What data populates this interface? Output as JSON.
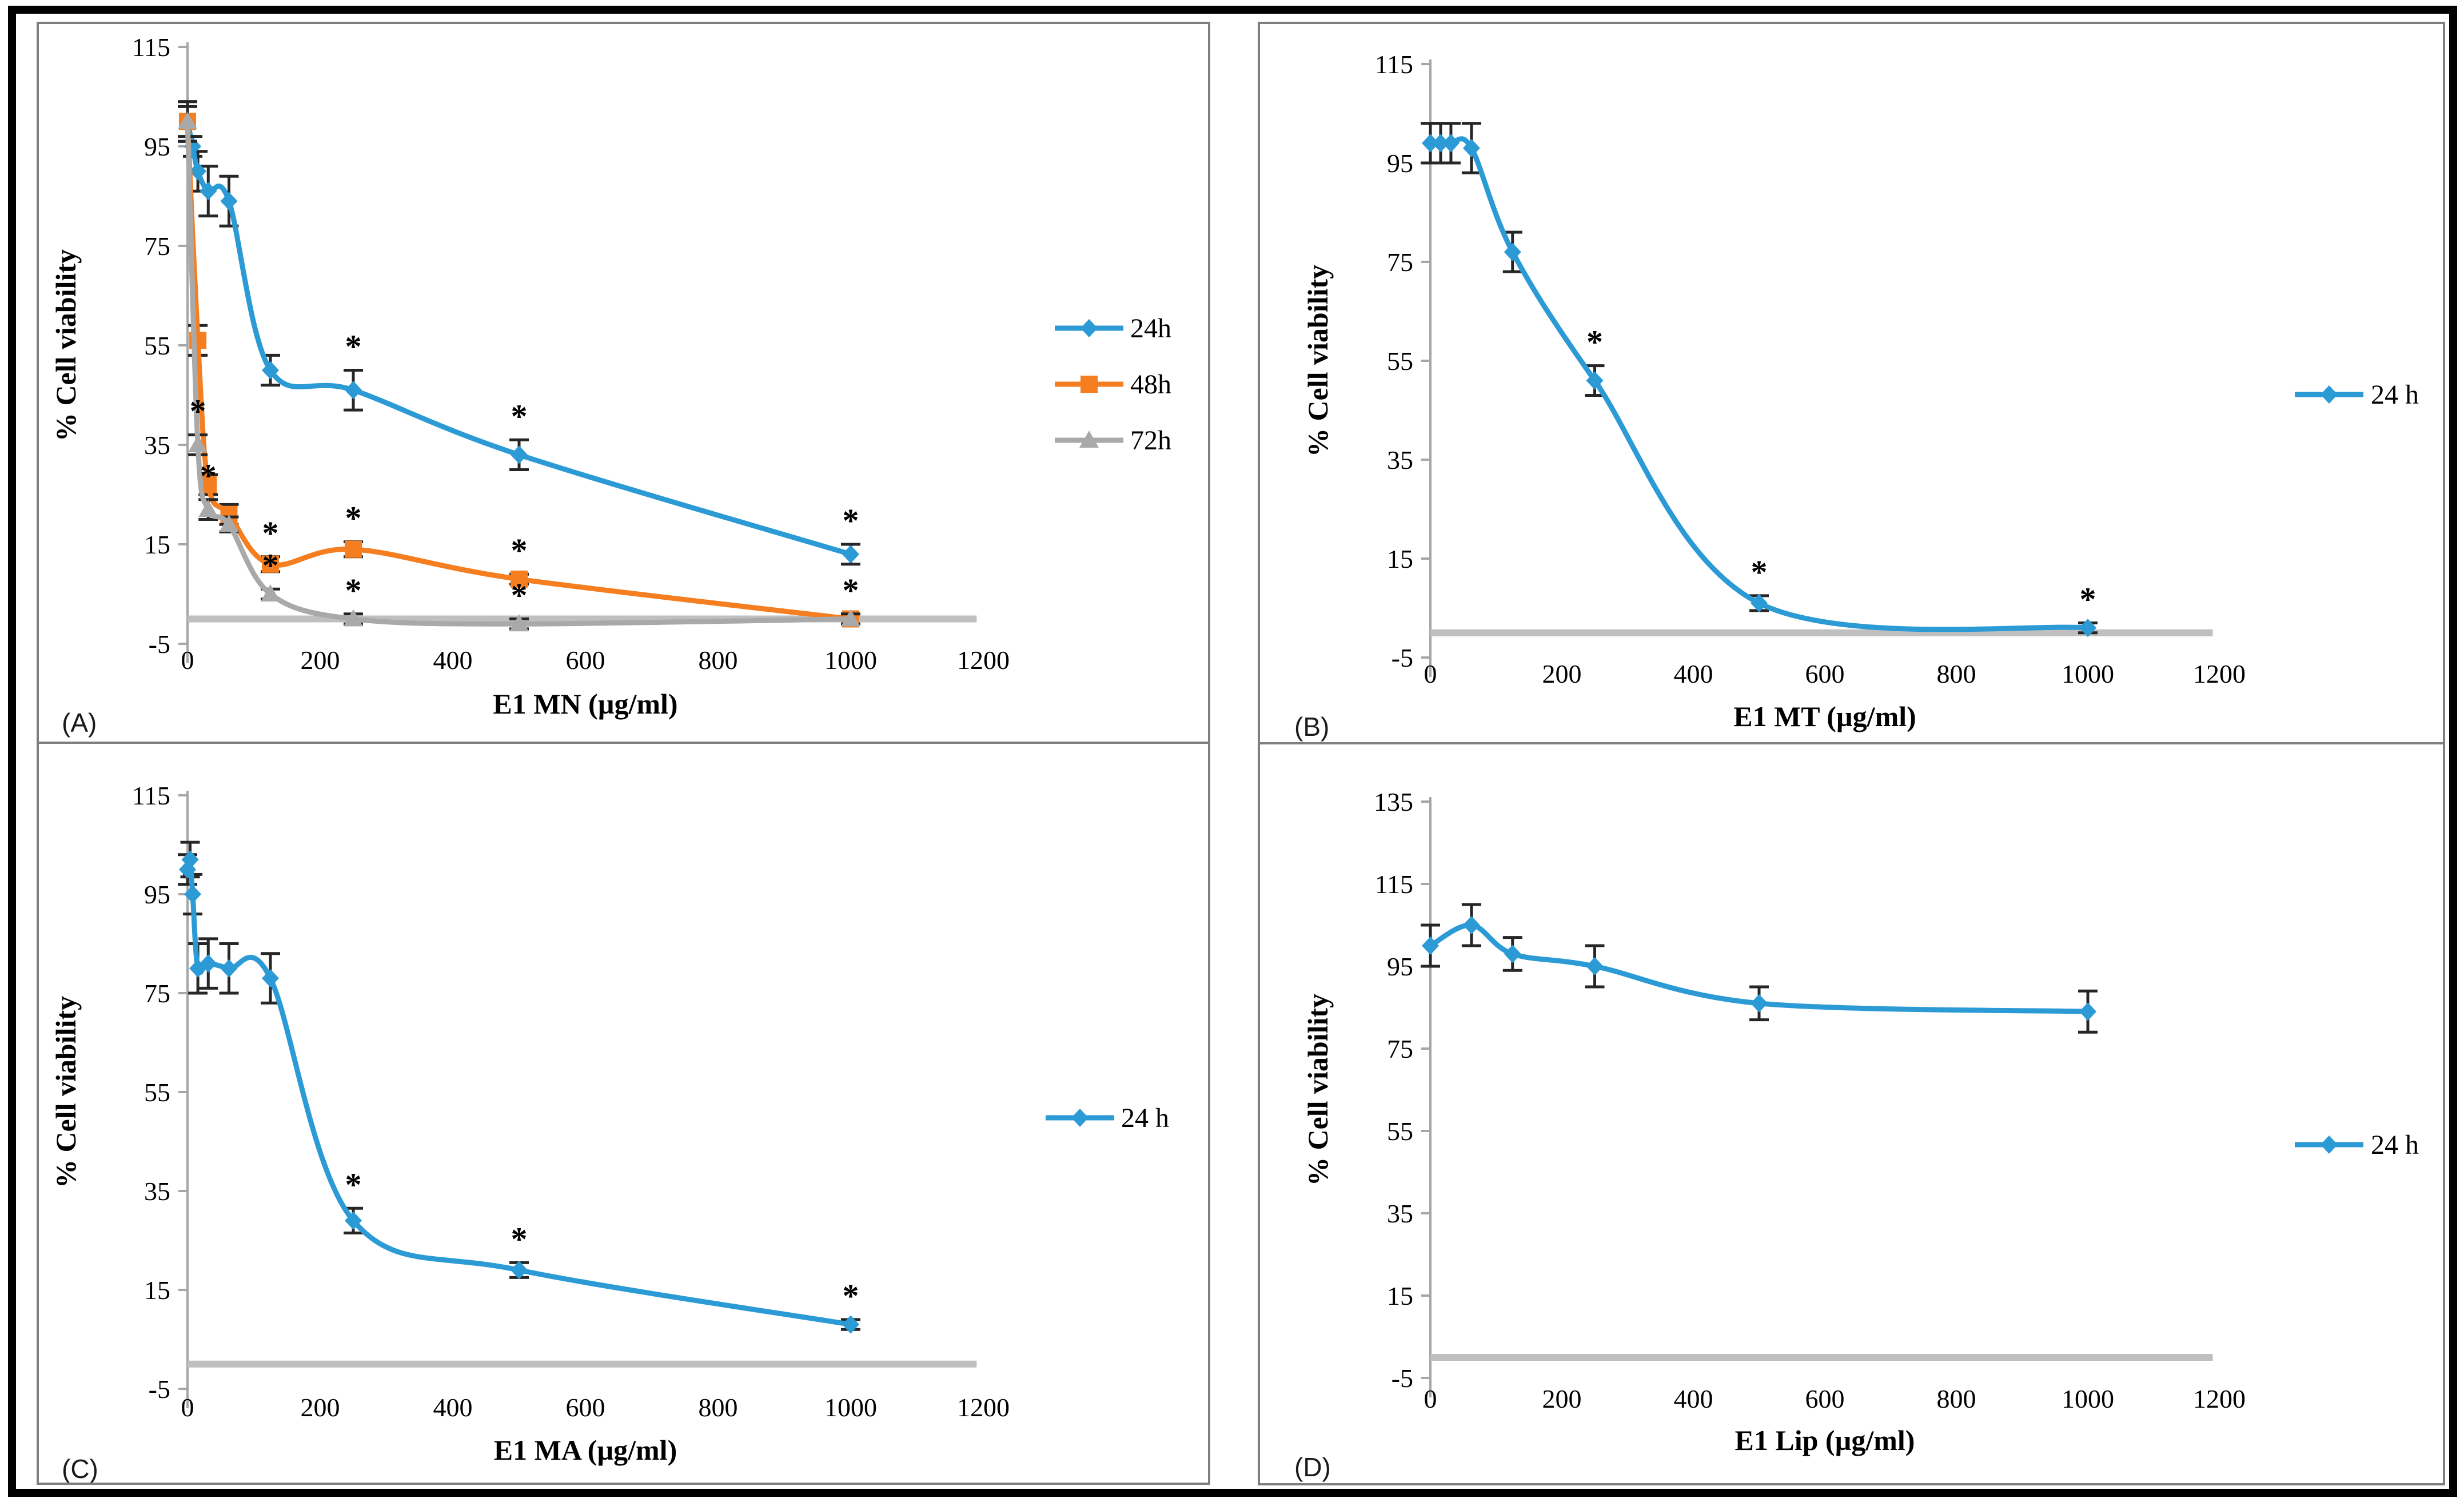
{
  "figure": {
    "background": "#ffffff",
    "outer_border_color": "#000000",
    "panel_border_color": "#7f7f7f"
  },
  "colors": {
    "blue": "#2b9ad5",
    "orange": "#f57e20",
    "gray": "#a9a9a9",
    "baseline": "#bfbfbf",
    "axis": "#a6a6a6",
    "error": "#262626",
    "text": "#000000"
  },
  "chart_data": [
    {
      "id": "A",
      "panel_label": "(A)",
      "type": "line",
      "title": "",
      "xlabel": "E1 MN (µg/ml)",
      "ylabel": "% Cell viability",
      "xlim": [
        0,
        1200
      ],
      "ylim": [
        -5,
        115
      ],
      "xticks": [
        0,
        200,
        400,
        600,
        800,
        1000,
        1200
      ],
      "yticks": [
        115,
        95,
        75,
        55,
        35,
        15,
        -5
      ],
      "grid": false,
      "legend_position": "right",
      "baseline_y": 0,
      "series": [
        {
          "name": "24h",
          "color_key": "blue",
          "marker": "diamond",
          "x": [
            0,
            7.8,
            15.6,
            31.25,
            62.5,
            125,
            250,
            500,
            1000
          ],
          "y": [
            100,
            95,
            90,
            86,
            84,
            50,
            46,
            33,
            13
          ],
          "err": [
            4,
            2,
            4,
            5,
            5,
            3,
            4,
            3,
            2
          ],
          "stars": [
            250,
            500,
            1000
          ]
        },
        {
          "name": "48h",
          "color_key": "orange",
          "marker": "square",
          "x": [
            0,
            15.6,
            31.25,
            62.5,
            125,
            250,
            500,
            1000
          ],
          "y": [
            100,
            56,
            27,
            21,
            11,
            14,
            8,
            0
          ],
          "err": [
            4,
            3,
            2,
            2,
            1.5,
            1.5,
            1,
            1
          ],
          "stars": [
            125,
            250,
            500,
            1000
          ]
        },
        {
          "name": "72h",
          "color_key": "gray",
          "marker": "triangle",
          "x": [
            0,
            15.6,
            31.25,
            62.5,
            125,
            250,
            500,
            1000
          ],
          "y": [
            100,
            35,
            22,
            19,
            5,
            0,
            -1,
            0
          ],
          "err": [
            3,
            2,
            2,
            1.5,
            1,
            1,
            1,
            1
          ],
          "stars": [
            15.6,
            31.25,
            125,
            250,
            500
          ]
        }
      ]
    },
    {
      "id": "B",
      "panel_label": "(B)",
      "type": "line",
      "title": "",
      "xlabel": "E1 MT (µg/ml)",
      "ylabel": "% Cell viability",
      "xlim": [
        0,
        1200
      ],
      "ylim": [
        -5,
        115
      ],
      "xticks": [
        0,
        200,
        400,
        600,
        800,
        1000,
        1200
      ],
      "yticks": [
        115,
        95,
        75,
        55,
        35,
        15,
        -5
      ],
      "grid": false,
      "legend_position": "right",
      "baseline_y": 0,
      "series": [
        {
          "name": "24 h",
          "color_key": "blue",
          "marker": "diamond",
          "x": [
            0,
            15.6,
            31.25,
            62.5,
            125,
            250,
            500,
            1000
          ],
          "y": [
            99,
            99,
            99,
            98,
            77,
            51,
            6,
            1
          ],
          "err": [
            4,
            4,
            4,
            5,
            4,
            3,
            1.5,
            1
          ],
          "stars": [
            250,
            500,
            1000
          ]
        }
      ]
    },
    {
      "id": "C",
      "panel_label": "(C)",
      "type": "line",
      "title": "",
      "xlabel": "E1 MA (µg/ml)",
      "ylabel": "% Cell viability",
      "xlim": [
        0,
        1200
      ],
      "ylim": [
        -5,
        115
      ],
      "xticks": [
        0,
        200,
        400,
        600,
        800,
        1000,
        1200
      ],
      "yticks": [
        115,
        95,
        75,
        55,
        35,
        15,
        -5
      ],
      "grid": false,
      "legend_position": "right",
      "baseline_y": 0,
      "series": [
        {
          "name": "24 h",
          "color_key": "blue",
          "marker": "diamond",
          "x": [
            0,
            3.9,
            7.8,
            15.6,
            31.25,
            62.5,
            125,
            250,
            500,
            1000
          ],
          "y": [
            100,
            102,
            95,
            80,
            81,
            80,
            78,
            29,
            19,
            8
          ],
          "err": [
            3,
            3.5,
            4,
            5,
            5,
            5,
            5,
            2.5,
            1.5,
            1
          ],
          "stars": [
            250,
            500,
            1000
          ]
        }
      ]
    },
    {
      "id": "D",
      "panel_label": "(D)",
      "type": "line",
      "title": "",
      "xlabel": "E1 Lip (µg/ml)",
      "ylabel": "% Cell viability",
      "xlim": [
        0,
        1200
      ],
      "ylim": [
        -5,
        135
      ],
      "xticks": [
        0,
        200,
        400,
        600,
        800,
        1000,
        1200
      ],
      "yticks": [
        135,
        115,
        95,
        75,
        55,
        35,
        15,
        -5
      ],
      "grid": false,
      "legend_position": "right",
      "baseline_y": 0,
      "series": [
        {
          "name": "24 h",
          "color_key": "blue",
          "marker": "diamond",
          "x": [
            0,
            62.5,
            125,
            250,
            500,
            1000
          ],
          "y": [
            100,
            105,
            98,
            95,
            86,
            84
          ],
          "err": [
            5,
            5,
            4,
            5,
            4,
            5
          ],
          "stars": []
        }
      ]
    }
  ]
}
